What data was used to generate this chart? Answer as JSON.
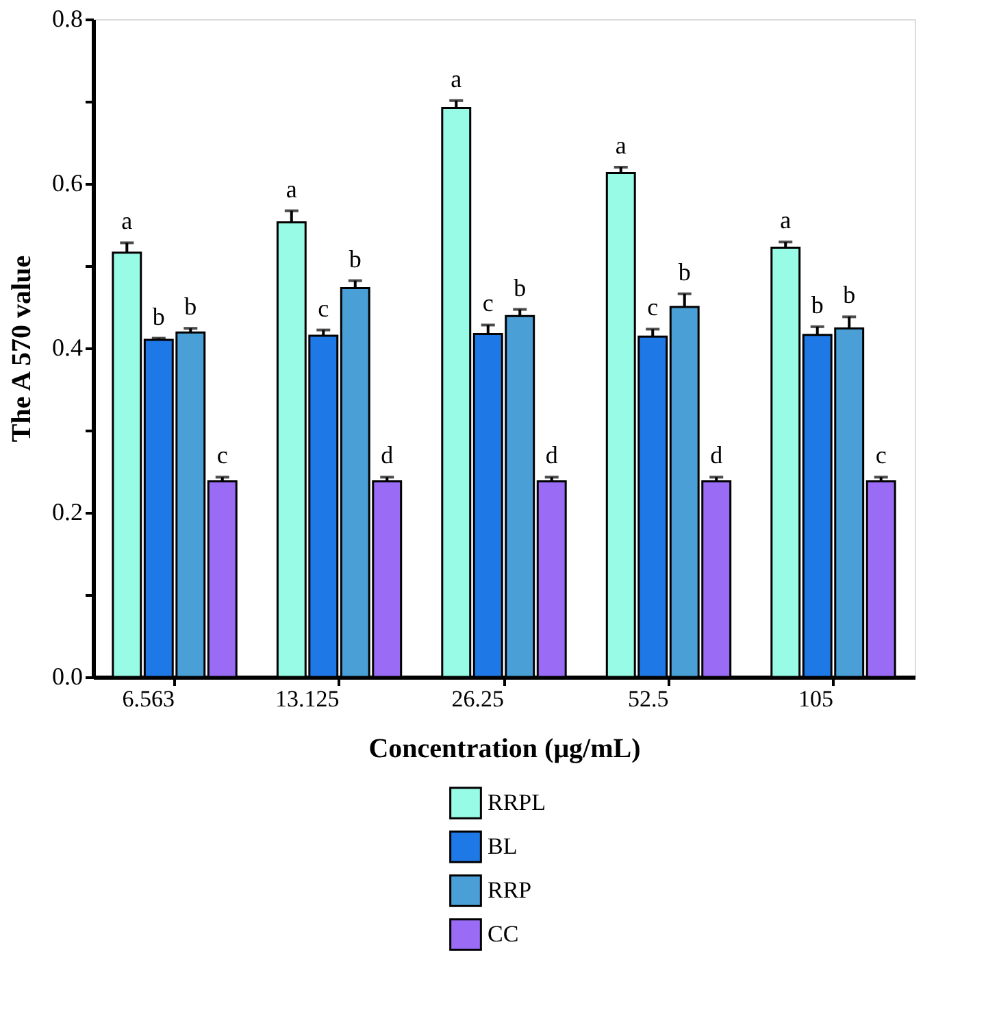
{
  "chart_data": {
    "type": "bar",
    "xlabel": "Concentration (μg/mL)",
    "ylabel": "The A 570 value",
    "categories": [
      "6.563",
      "13.125",
      "26.25",
      "52.5",
      "105"
    ],
    "series": [
      {
        "name": "RRPL",
        "color": "#98fbe6",
        "values": [
          0.516,
          0.553,
          0.692,
          0.613,
          0.522
        ],
        "errors": [
          0.012,
          0.014,
          0.009,
          0.007,
          0.007
        ]
      },
      {
        "name": "BL",
        "color": "#1e78e6",
        "values": [
          0.41,
          0.415,
          0.417,
          0.414,
          0.416
        ],
        "errors": [
          0.002,
          0.007,
          0.011,
          0.009,
          0.01
        ]
      },
      {
        "name": "RRP",
        "color": "#4aa0d6",
        "values": [
          0.419,
          0.473,
          0.439,
          0.45,
          0.424
        ],
        "errors": [
          0.005,
          0.009,
          0.008,
          0.016,
          0.014
        ]
      },
      {
        "name": "CC",
        "color": "#9a6cf5",
        "values": [
          0.238,
          0.238,
          0.238,
          0.238,
          0.238
        ],
        "errors": [
          0.005,
          0.005,
          0.005,
          0.005,
          0.005
        ]
      }
    ],
    "ylim": [
      0,
      0.8
    ],
    "yticks": [
      {
        "value": 0,
        "label": "0.0"
      },
      {
        "value": 0.1,
        "label": null
      },
      0.2,
      {
        "value": 0.3,
        "label": null
      },
      0.4,
      {
        "value": 0.5,
        "label": null
      },
      0.6,
      {
        "value": 0.7,
        "label": null
      },
      0.8
    ],
    "grid": false,
    "legend": "bottom",
    "annotations": [
      "a",
      "b",
      "b",
      "c",
      "a",
      "c",
      "b",
      "d",
      "a",
      "c",
      "b",
      "d",
      "a",
      "c",
      "b",
      "d",
      "a",
      "b",
      "b",
      "c"
    ]
  }
}
